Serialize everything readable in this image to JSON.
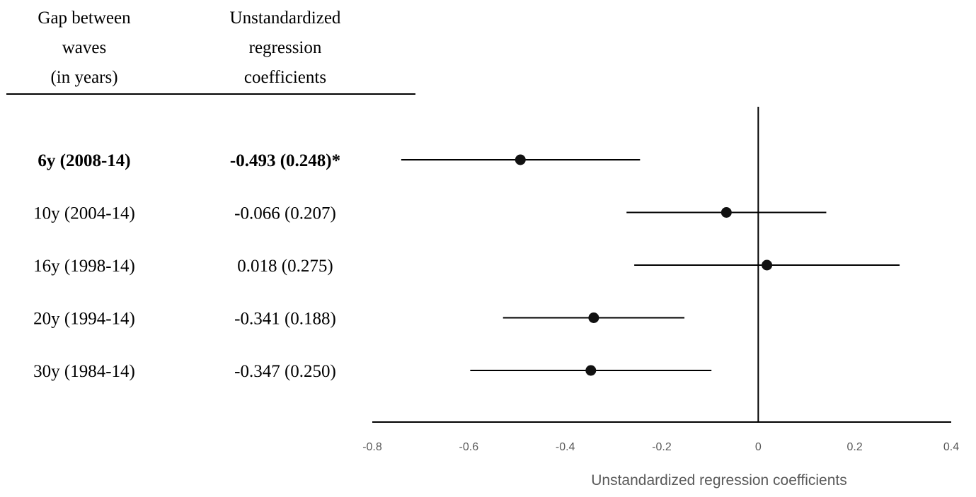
{
  "table": {
    "header_gap": [
      "Gap between",
      "waves",
      "(in years)"
    ],
    "header_coef": [
      "Unstandardized",
      "regression",
      "coefficients"
    ]
  },
  "chart_data": {
    "type": "forest",
    "xlabel": "Unstandardized regression coefficients",
    "xlim": [
      -0.8,
      0.4
    ],
    "xticks": [
      -0.8,
      -0.6,
      -0.4,
      -0.2,
      0,
      0.2,
      0.4
    ],
    "xtick_labels": [
      "-0.8",
      "-0.6",
      "-0.4",
      "-0.2",
      "0",
      "0.2",
      "0.4"
    ],
    "reference_line": 0,
    "rows": [
      {
        "label": "6y (2008-14)",
        "coef_text": "-0.493 (0.248)*",
        "estimate": -0.493,
        "se": 0.248,
        "lower": -0.74,
        "upper": -0.245,
        "bold": true
      },
      {
        "label": "10y (2004-14)",
        "coef_text": "-0.066 (0.207)",
        "estimate": -0.066,
        "se": 0.207,
        "lower": -0.273,
        "upper": 0.141,
        "bold": false
      },
      {
        "label": "16y (1998-14)",
        "coef_text": "0.018 (0.275)",
        "estimate": 0.018,
        "se": 0.275,
        "lower": -0.257,
        "upper": 0.293,
        "bold": false
      },
      {
        "label": "20y (1994-14)",
        "coef_text": "-0.341 (0.188)",
        "estimate": -0.341,
        "se": 0.188,
        "lower": -0.529,
        "upper": -0.153,
        "bold": false
      },
      {
        "label": "30y (1984-14)",
        "coef_text": "-0.347 (0.250)",
        "estimate": -0.347,
        "se": 0.25,
        "lower": -0.597,
        "upper": -0.097,
        "bold": false
      }
    ]
  }
}
